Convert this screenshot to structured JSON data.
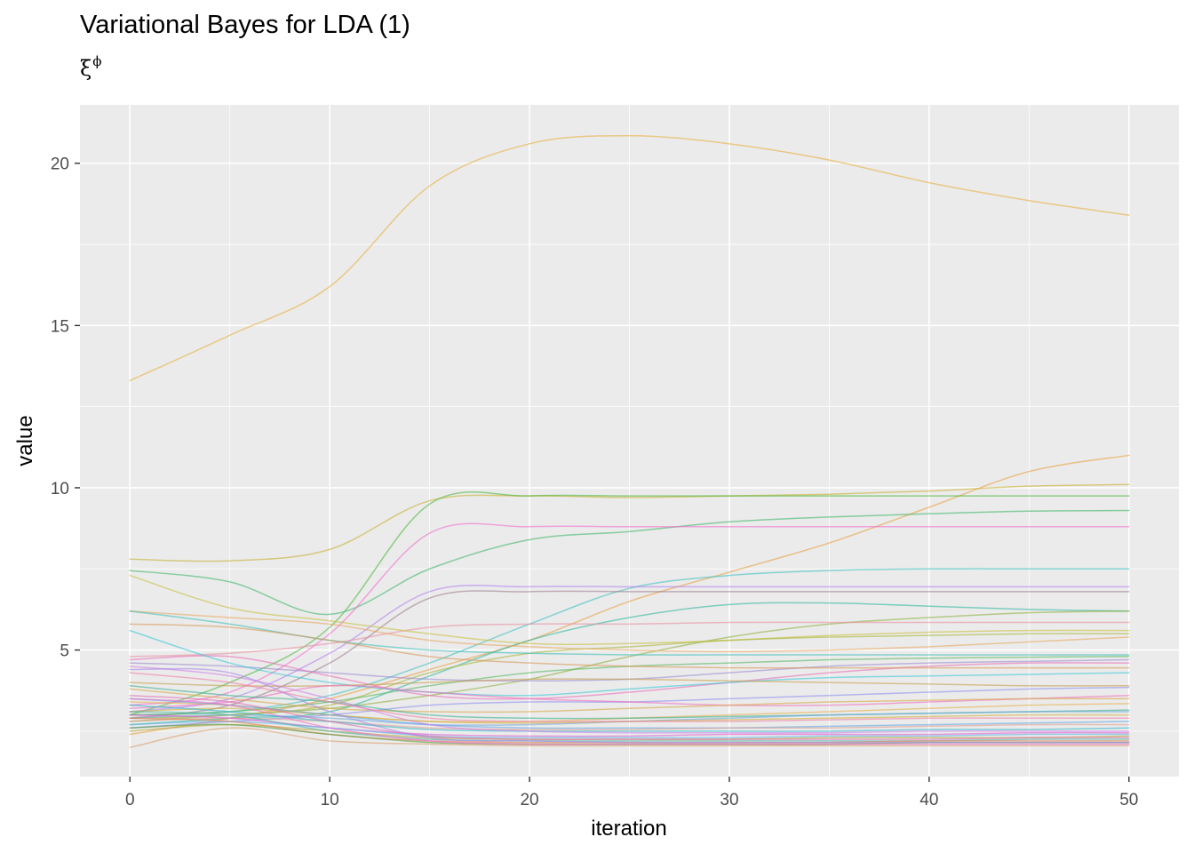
{
  "title": "Variational Bayes for LDA (1)",
  "subtitle": {
    "base": "ξ",
    "superscript": "ϕ"
  },
  "chart_data": {
    "type": "line",
    "title": "Variational Bayes for LDA (1)",
    "subtitle": "ξ^ϕ",
    "xlabel": "iteration",
    "ylabel": "value",
    "xlim": [
      -2.5,
      52.5
    ],
    "ylim": [
      1.1,
      21.8
    ],
    "x_ticks": [
      0,
      10,
      20,
      30,
      40,
      50
    ],
    "y_ticks": [
      5,
      10,
      15,
      20
    ],
    "x_tick_labels": [
      "0",
      "10",
      "20",
      "30",
      "40",
      "50"
    ],
    "y_tick_labels": [
      "5",
      "10",
      "15",
      "20"
    ],
    "grid": true,
    "legend": "none",
    "background": "#ebebeb",
    "line_alpha": 0.6,
    "x": [
      0,
      5,
      10,
      15,
      20,
      25,
      30,
      35,
      40,
      45,
      50
    ],
    "series": [
      {
        "color": "#E7B040",
        "values": [
          13.3,
          14.7,
          16.2,
          19.3,
          20.6,
          20.85,
          20.6,
          20.1,
          19.4,
          18.85,
          18.4
        ]
      },
      {
        "color": "#E8A040",
        "values": [
          2.4,
          2.9,
          3.5,
          4.4,
          5.3,
          6.5,
          7.4,
          8.3,
          9.4,
          10.5,
          11.0
        ]
      },
      {
        "color": "#C8B030",
        "values": [
          7.8,
          7.75,
          8.1,
          9.6,
          9.75,
          9.7,
          9.75,
          9.8,
          9.9,
          10.05,
          10.1
        ]
      },
      {
        "color": "#50B840",
        "values": [
          3.0,
          4.0,
          5.7,
          9.5,
          9.75,
          9.75,
          9.75,
          9.75,
          9.75,
          9.75,
          9.75
        ]
      },
      {
        "color": "#40B868",
        "values": [
          7.45,
          7.1,
          6.1,
          7.5,
          8.4,
          8.65,
          8.95,
          9.1,
          9.2,
          9.28,
          9.3
        ]
      },
      {
        "color": "#F070D0",
        "values": [
          3.3,
          3.7,
          5.5,
          8.6,
          8.8,
          8.8,
          8.8,
          8.8,
          8.8,
          8.8,
          8.8
        ]
      },
      {
        "color": "#40C0C0",
        "values": [
          3.0,
          3.1,
          3.6,
          4.6,
          5.8,
          6.9,
          7.3,
          7.45,
          7.5,
          7.5,
          7.5
        ]
      },
      {
        "color": "#B080F0",
        "values": [
          3.1,
          3.5,
          4.9,
          6.8,
          6.95,
          6.95,
          6.95,
          6.95,
          6.95,
          6.95,
          6.95
        ]
      },
      {
        "color": "#A08090",
        "values": [
          2.9,
          3.3,
          4.6,
          6.6,
          6.8,
          6.8,
          6.8,
          6.8,
          6.8,
          6.8,
          6.8
        ]
      },
      {
        "color": "#30B8A0",
        "values": [
          2.7,
          2.9,
          3.1,
          4.2,
          5.3,
          6.0,
          6.4,
          6.45,
          6.35,
          6.25,
          6.2
        ]
      },
      {
        "color": "#90B040",
        "values": [
          2.8,
          3.0,
          3.2,
          3.6,
          4.1,
          4.8,
          5.4,
          5.8,
          6.0,
          6.15,
          6.2
        ]
      },
      {
        "color": "#E890A0",
        "values": [
          4.8,
          4.9,
          5.2,
          5.7,
          5.8,
          5.8,
          5.85,
          5.85,
          5.85,
          5.85,
          5.85
        ]
      },
      {
        "color": "#C8C040",
        "values": [
          7.3,
          6.3,
          5.9,
          5.5,
          5.2,
          5.2,
          5.3,
          5.45,
          5.55,
          5.6,
          5.6
        ]
      },
      {
        "color": "#A8B838",
        "values": [
          2.9,
          3.0,
          3.3,
          4.3,
          4.9,
          5.1,
          5.3,
          5.4,
          5.45,
          5.5,
          5.5
        ]
      },
      {
        "color": "#E8A860",
        "values": [
          6.2,
          6.0,
          5.8,
          5.3,
          5.1,
          5.0,
          4.95,
          5.0,
          5.1,
          5.25,
          5.4
        ]
      },
      {
        "color": "#40C0B8",
        "values": [
          6.2,
          5.8,
          5.3,
          5.0,
          4.9,
          4.85,
          4.85,
          4.85,
          4.85,
          4.85,
          4.85
        ]
      },
      {
        "color": "#58B860",
        "values": [
          3.0,
          3.1,
          3.4,
          3.9,
          4.3,
          4.5,
          4.6,
          4.7,
          4.75,
          4.78,
          4.8
        ]
      },
      {
        "color": "#9C8CD0",
        "values": [
          4.6,
          4.5,
          4.3,
          4.1,
          4.05,
          4.1,
          4.3,
          4.5,
          4.6,
          4.65,
          4.7
        ]
      },
      {
        "color": "#E870B8",
        "values": [
          4.7,
          4.8,
          4.2,
          3.6,
          3.5,
          3.7,
          4.0,
          4.3,
          4.5,
          4.6,
          4.6
        ]
      },
      {
        "color": "#D89858",
        "values": [
          5.8,
          5.7,
          5.3,
          4.8,
          4.6,
          4.5,
          4.45,
          4.45,
          4.45,
          4.45,
          4.45
        ]
      },
      {
        "color": "#40C8D8",
        "values": [
          5.6,
          4.6,
          4.0,
          3.7,
          3.6,
          3.8,
          4.0,
          4.15,
          4.2,
          4.25,
          4.3
        ]
      },
      {
        "color": "#C8A050",
        "values": [
          4.0,
          3.9,
          3.9,
          4.0,
          4.1,
          4.1,
          4.05,
          4.0,
          3.95,
          3.9,
          3.9
        ]
      },
      {
        "color": "#9090F0",
        "values": [
          2.6,
          2.8,
          3.0,
          3.3,
          3.4,
          3.4,
          3.5,
          3.6,
          3.7,
          3.8,
          3.85
        ]
      },
      {
        "color": "#F070C0",
        "values": [
          3.2,
          3.4,
          3.9,
          3.7,
          3.5,
          3.4,
          3.3,
          3.3,
          3.4,
          3.5,
          3.6
        ]
      },
      {
        "color": "#D8A848",
        "values": [
          3.8,
          3.5,
          3.2,
          3.1,
          3.1,
          3.2,
          3.3,
          3.4,
          3.45,
          3.5,
          3.5
        ]
      },
      {
        "color": "#E8B050",
        "values": [
          3.4,
          3.3,
          3.0,
          2.8,
          2.8,
          2.9,
          3.0,
          3.1,
          3.2,
          3.3,
          3.35
        ]
      },
      {
        "color": "#40B090",
        "values": [
          3.9,
          3.6,
          3.4,
          3.0,
          2.9,
          2.9,
          2.95,
          3.0,
          3.05,
          3.1,
          3.15
        ]
      },
      {
        "color": "#70A8E0",
        "values": [
          2.9,
          3.0,
          2.9,
          2.7,
          2.7,
          2.8,
          2.9,
          3.0,
          3.05,
          3.1,
          3.1
        ]
      },
      {
        "color": "#D0B040",
        "values": [
          3.1,
          3.2,
          3.0,
          2.8,
          2.75,
          2.8,
          2.85,
          2.9,
          2.95,
          3.0,
          3.0
        ]
      },
      {
        "color": "#F080A8",
        "values": [
          4.3,
          4.0,
          3.4,
          2.9,
          2.8,
          2.8,
          2.8,
          2.85,
          2.9,
          2.9,
          2.9
        ]
      },
      {
        "color": "#60A8E8",
        "values": [
          3.5,
          3.3,
          3.0,
          2.7,
          2.6,
          2.6,
          2.6,
          2.65,
          2.7,
          2.75,
          2.8
        ]
      },
      {
        "color": "#E0A090",
        "values": [
          2.8,
          2.9,
          2.8,
          2.6,
          2.55,
          2.55,
          2.6,
          2.6,
          2.65,
          2.7,
          2.7
        ]
      },
      {
        "color": "#30B8C8",
        "values": [
          3.3,
          3.1,
          2.8,
          2.55,
          2.5,
          2.5,
          2.5,
          2.5,
          2.55,
          2.55,
          2.6
        ]
      },
      {
        "color": "#D080E8",
        "values": [
          4.5,
          4.2,
          3.5,
          2.7,
          2.5,
          2.45,
          2.45,
          2.45,
          2.5,
          2.5,
          2.5
        ]
      },
      {
        "color": "#E060D0",
        "values": [
          3.0,
          2.9,
          2.6,
          2.4,
          2.35,
          2.35,
          2.4,
          2.4,
          2.4,
          2.45,
          2.45
        ]
      },
      {
        "color": "#60B8E8",
        "values": [
          2.7,
          2.8,
          2.6,
          2.35,
          2.3,
          2.3,
          2.3,
          2.35,
          2.35,
          2.4,
          2.4
        ]
      },
      {
        "color": "#B8A838",
        "values": [
          2.5,
          2.7,
          2.5,
          2.3,
          2.25,
          2.25,
          2.25,
          2.3,
          2.3,
          2.3,
          2.35
        ]
      },
      {
        "color": "#E070B0",
        "values": [
          3.6,
          3.4,
          2.8,
          2.35,
          2.25,
          2.25,
          2.25,
          2.25,
          2.25,
          2.3,
          2.3
        ]
      },
      {
        "color": "#50B8A8",
        "values": [
          3.1,
          3.0,
          2.5,
          2.25,
          2.2,
          2.2,
          2.2,
          2.2,
          2.2,
          2.25,
          2.25
        ]
      },
      {
        "color": "#E88058",
        "values": [
          2.9,
          2.8,
          2.4,
          2.2,
          2.15,
          2.15,
          2.15,
          2.15,
          2.2,
          2.2,
          2.2
        ]
      },
      {
        "color": "#58A040",
        "values": [
          2.6,
          2.7,
          2.4,
          2.15,
          2.1,
          2.1,
          2.1,
          2.1,
          2.15,
          2.15,
          2.15
        ]
      },
      {
        "color": "#A888E8",
        "values": [
          4.4,
          4.3,
          3.1,
          2.3,
          2.2,
          2.15,
          2.15,
          2.15,
          2.15,
          2.15,
          2.15
        ]
      },
      {
        "color": "#F070C8",
        "values": [
          3.5,
          3.3,
          2.6,
          2.2,
          2.1,
          2.1,
          2.1,
          2.1,
          2.1,
          2.1,
          2.1
        ]
      },
      {
        "color": "#D8A070",
        "values": [
          2.0,
          2.6,
          2.2,
          2.1,
          2.05,
          2.05,
          2.05,
          2.05,
          2.05,
          2.05,
          2.05
        ]
      }
    ]
  }
}
